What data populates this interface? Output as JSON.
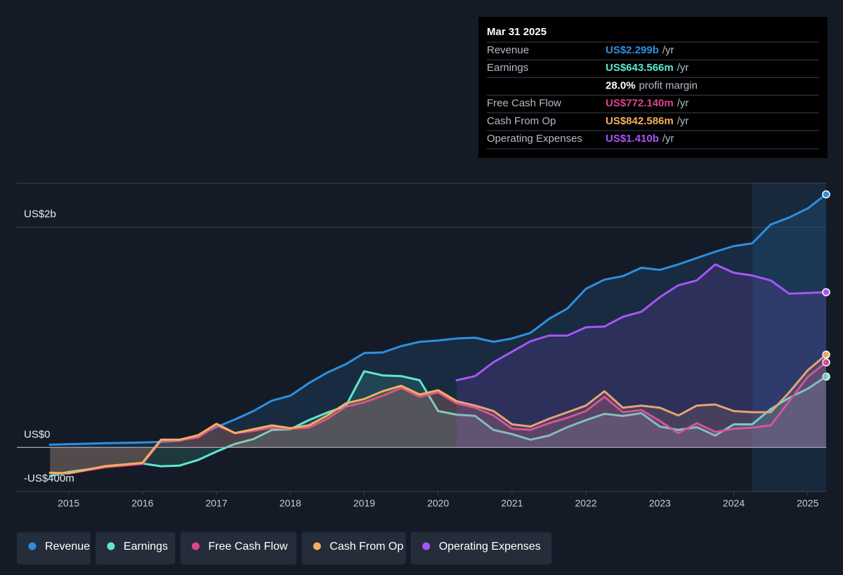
{
  "chart_data": {
    "type": "line",
    "x": [
      2014.75,
      2015,
      2015.5,
      2016,
      2016.25,
      2016.5,
      2016.75,
      2017,
      2017.25,
      2017.5,
      2017.75,
      2018,
      2018.25,
      2018.5,
      2018.75,
      2019,
      2019.25,
      2019.5,
      2019.75,
      2020,
      2020.25,
      2020.5,
      2020.75,
      2021,
      2021.25,
      2021.5,
      2021.75,
      2022,
      2022.25,
      2022.5,
      2022.75,
      2023,
      2023.25,
      2023.5,
      2023.75,
      2024,
      2024.25,
      2024.5,
      2024.75,
      2025,
      2025.25
    ],
    "series": [
      {
        "name": "Revenue",
        "color": "#2d8fe0",
        "values": [
          25,
          30,
          38,
          45,
          50,
          60,
          108,
          184,
          254,
          330,
          425,
          470,
          584,
          680,
          756,
          857,
          863,
          920,
          959,
          971,
          990,
          997,
          959,
          990,
          1041,
          1168,
          1263,
          1441,
          1524,
          1556,
          1632,
          1613,
          1663,
          1721,
          1778,
          1829,
          1854,
          2025,
          2089,
          2171,
          2299
        ]
      },
      {
        "name": "Earnings",
        "color": "#5ee8d0",
        "values": [
          -260,
          -222,
          -178,
          -146,
          -171,
          -165,
          -114,
          -38,
          32,
          76,
          159,
          165,
          248,
          317,
          375,
          692,
          654,
          648,
          610,
          330,
          298,
          286,
          159,
          121,
          70,
          108,
          184,
          248,
          305,
          286,
          311,
          190,
          159,
          184,
          108,
          210,
          210,
          349,
          451,
          533,
          643.6
        ]
      },
      {
        "name": "Free Cash Flow",
        "color": "#d9478a",
        "values": [
          -235,
          -235,
          -180,
          -150,
          60,
          65,
          90,
          200,
          130,
          150,
          180,
          170,
          180,
          260,
          370,
          410,
          470,
          540,
          460,
          500,
          400,
          360,
          290,
          170,
          160,
          220,
          270,
          330,
          460,
          320,
          340,
          240,
          130,
          220,
          140,
          170,
          180,
          200,
          420,
          640,
          772.1
        ]
      },
      {
        "name": "Cash From Op",
        "color": "#f0b060",
        "values": [
          -230,
          -235,
          -170,
          -140,
          70,
          70,
          110,
          215,
          130,
          165,
          200,
          175,
          200,
          290,
          400,
          440,
          510,
          560,
          480,
          520,
          420,
          380,
          330,
          210,
          190,
          260,
          320,
          380,
          510,
          360,
          380,
          360,
          290,
          380,
          390,
          330,
          320,
          320,
          500,
          700,
          842.6
        ]
      },
      {
        "name": "Operating Expenses",
        "color": "#a855f7",
        "values": [
          null,
          null,
          null,
          null,
          null,
          null,
          null,
          null,
          null,
          null,
          null,
          null,
          null,
          null,
          null,
          null,
          null,
          null,
          null,
          null,
          610,
          648,
          775,
          870,
          965,
          1016,
          1016,
          1092,
          1098,
          1187,
          1232,
          1365,
          1473,
          1517,
          1663,
          1587,
          1562,
          1517,
          1397,
          1403,
          1410
        ]
      }
    ],
    "xlim": [
      2014.3,
      2025.25
    ],
    "xticks": [
      2015,
      2016,
      2017,
      2018,
      2019,
      2020,
      2021,
      2022,
      2023,
      2024,
      2025
    ],
    "ylim": [
      -400,
      2400
    ],
    "yticks": [
      {
        "value": -400,
        "label": "-US$400m"
      },
      {
        "value": 0,
        "label": "US$0"
      },
      {
        "value": 2000,
        "label": "US$2b"
      }
    ],
    "tooltip": {
      "date": "Mar 31 2025",
      "rows": [
        {
          "label": "Revenue",
          "value": "US$2.299b",
          "unit": "/yr"
        },
        {
          "label": "Earnings",
          "value": "US$643.566m",
          "unit": "/yr"
        },
        {
          "label": "",
          "value": "28.0%",
          "unit": "profit margin"
        },
        {
          "label": "Free Cash Flow",
          "value": "US$772.140m",
          "unit": "/yr"
        },
        {
          "label": "Cash From Op",
          "value": "US$842.586m",
          "unit": "/yr"
        },
        {
          "label": "Operating Expenses",
          "value": "US$1.410b",
          "unit": "/yr"
        }
      ]
    }
  }
}
